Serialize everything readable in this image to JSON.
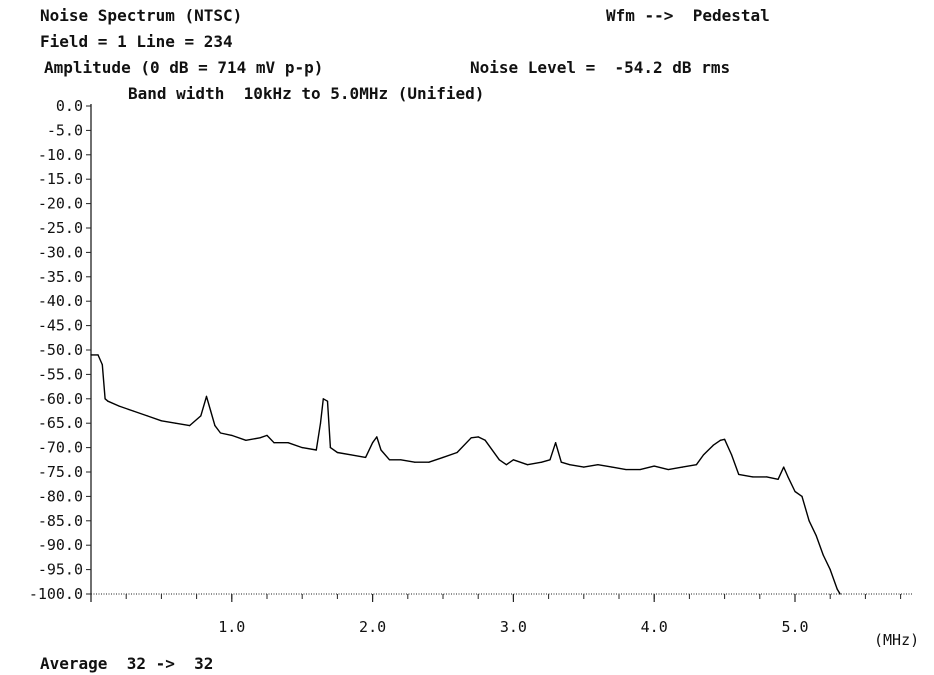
{
  "header": {
    "line1_left": "Noise Spectrum (NTSC)",
    "line1_right": "Wfm -->  Pedestal",
    "line2": "Field = 1 Line = 234",
    "line3_left": "Amplitude (0 dB = 714 mV p-p)",
    "line3_right": "Noise Level =  -54.2 dB rms",
    "line4": "Band width  10kHz to 5.0MHz (Unified)"
  },
  "footer": {
    "average": "Average  32 ->  32"
  },
  "colors": {
    "trace": "#000000",
    "axis": "#222222",
    "text": "#111111",
    "background": "#ffffff"
  },
  "chart_data": {
    "type": "line",
    "title": "Noise Spectrum (NTSC)",
    "xlabel": "(MHz)",
    "ylabel": "",
    "xlim": [
      0,
      6.0
    ],
    "ylim": [
      -100,
      0
    ],
    "x_ticks": [
      "1.0",
      "2.0",
      "3.0",
      "4.0",
      "5.0"
    ],
    "y_ticks": [
      "0.0",
      "-5.0",
      "-10.0",
      "-15.0",
      "-20.0",
      "-25.0",
      "-30.0",
      "-35.0",
      "-40.0",
      "-45.0",
      "-50.0",
      "-55.0",
      "-60.0",
      "-65.0",
      "-70.0",
      "-75.0",
      "-80.0",
      "-85.0",
      "-90.0",
      "-95.0",
      "-100.0"
    ],
    "grid": false,
    "series": [
      {
        "x": [
          0.0,
          0.05,
          0.08,
          0.1,
          0.12,
          0.2,
          0.3,
          0.4,
          0.5,
          0.6,
          0.7,
          0.78,
          0.82,
          0.85,
          0.88,
          0.92,
          1.0,
          1.1,
          1.2,
          1.25,
          1.3,
          1.4,
          1.5,
          1.6,
          1.63,
          1.65,
          1.68,
          1.7,
          1.75,
          1.85,
          1.95,
          2.0,
          2.03,
          2.06,
          2.12,
          2.2,
          2.3,
          2.4,
          2.5,
          2.6,
          2.7,
          2.75,
          2.8,
          2.9,
          2.95,
          3.0,
          3.1,
          3.2,
          3.26,
          3.3,
          3.34,
          3.4,
          3.5,
          3.6,
          3.7,
          3.8,
          3.9,
          4.0,
          4.1,
          4.2,
          4.3,
          4.35,
          4.42,
          4.47,
          4.5,
          4.55,
          4.6,
          4.7,
          4.8,
          4.88,
          4.92,
          4.95,
          5.0,
          5.05,
          5.1,
          5.15,
          5.2,
          5.25,
          5.3,
          5.32
        ],
        "values": [
          -51.0,
          -51.0,
          -53.0,
          -60.0,
          -60.5,
          -61.5,
          -62.5,
          -63.5,
          -64.5,
          -65.0,
          -65.5,
          -63.5,
          -59.5,
          -62.5,
          -65.5,
          -67.0,
          -67.5,
          -68.5,
          -68.0,
          -67.5,
          -69.0,
          -69.0,
          -70.0,
          -70.5,
          -65.0,
          -60.0,
          -60.5,
          -70.0,
          -71.0,
          -71.5,
          -72.0,
          -69.0,
          -67.8,
          -70.5,
          -72.5,
          -72.5,
          -73.0,
          -73.0,
          -72.0,
          -71.0,
          -68.0,
          -67.8,
          -68.5,
          -72.5,
          -73.5,
          -72.5,
          -73.5,
          -73.0,
          -72.5,
          -69.0,
          -73.0,
          -73.5,
          -74.0,
          -73.5,
          -74.0,
          -74.5,
          -74.5,
          -73.8,
          -74.5,
          -74.0,
          -73.5,
          -71.5,
          -69.5,
          -68.5,
          -68.3,
          -71.5,
          -75.5,
          -76.0,
          -76.0,
          -76.5,
          -74.0,
          -76.0,
          -79.0,
          -80.0,
          -85.0,
          -88.0,
          -92.0,
          -95.0,
          -99.0,
          -100.0
        ]
      }
    ]
  }
}
